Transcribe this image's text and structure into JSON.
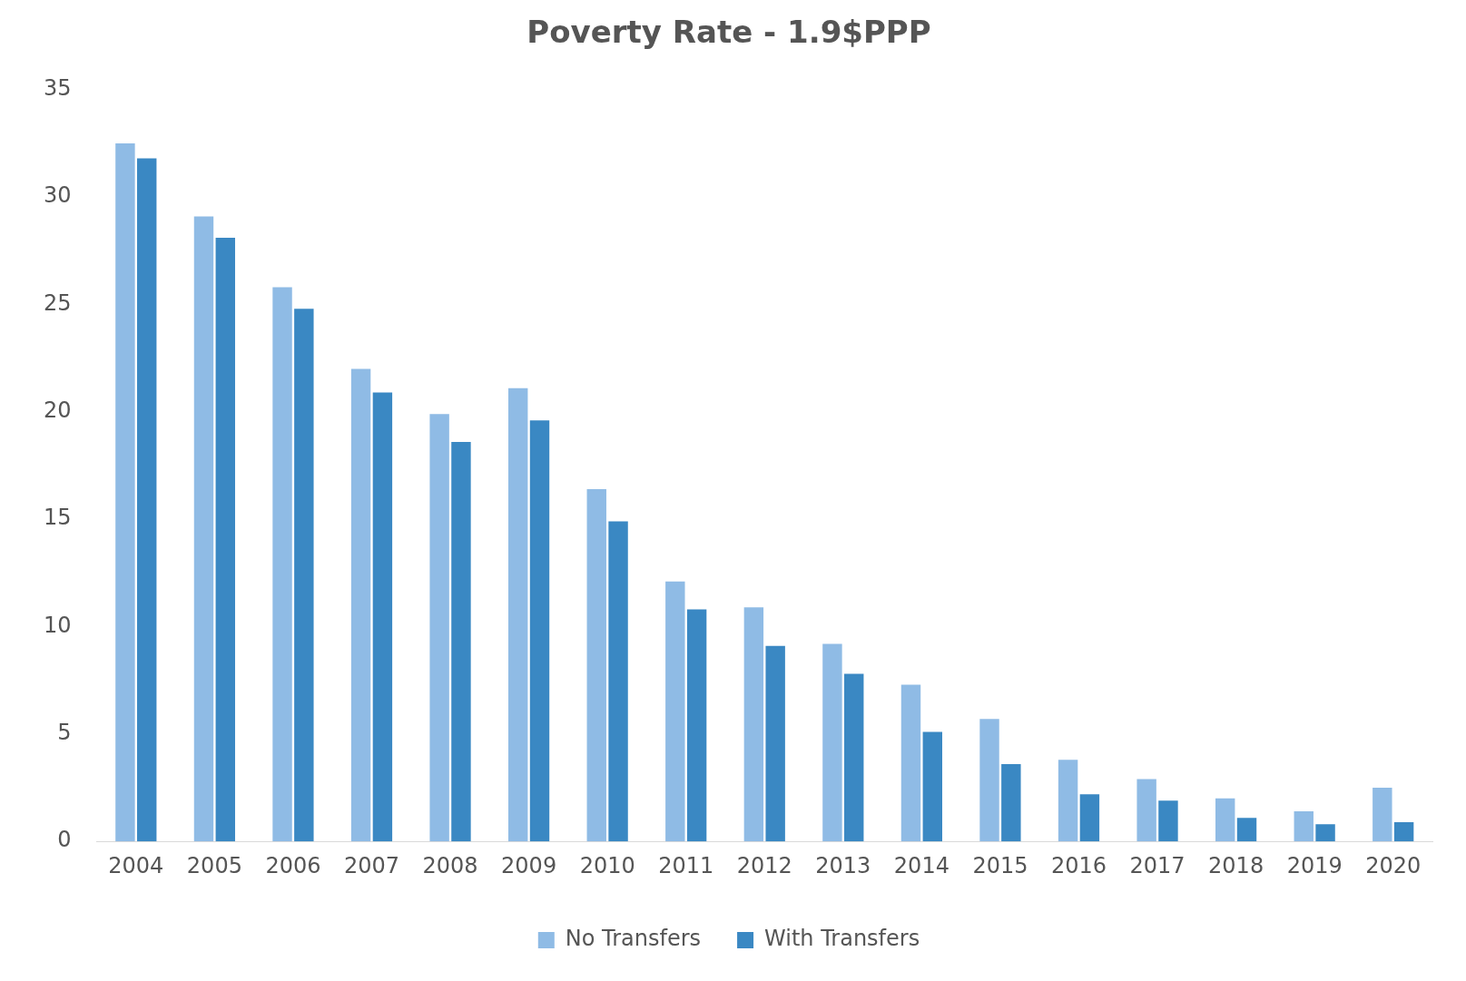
{
  "chart_data": {
    "type": "bar",
    "title": "Poverty Rate - 1.9$PPP",
    "categories": [
      "2004",
      "2005",
      "2006",
      "2007",
      "2008",
      "2009",
      "2010",
      "2011",
      "2012",
      "2013",
      "2014",
      "2015",
      "2016",
      "2017",
      "2018",
      "2019",
      "2020"
    ],
    "series": [
      {
        "name": "No Transfers",
        "color": "#8fbbe5",
        "values": [
          32.5,
          29.1,
          25.8,
          22.0,
          19.9,
          21.1,
          16.4,
          12.1,
          10.9,
          9.2,
          7.3,
          5.7,
          3.8,
          2.9,
          2.0,
          1.4,
          2.5
        ]
      },
      {
        "name": "With Transfers",
        "color": "#3a88c3",
        "values": [
          31.8,
          28.1,
          24.8,
          20.9,
          18.6,
          19.6,
          14.9,
          10.8,
          9.1,
          7.8,
          5.1,
          3.6,
          2.2,
          1.9,
          1.1,
          0.8,
          0.9
        ]
      }
    ],
    "ylim": [
      0,
      35
    ],
    "yticks": [
      0,
      5,
      10,
      15,
      20,
      25,
      30,
      35
    ],
    "grid": false,
    "legend": "bottom"
  }
}
